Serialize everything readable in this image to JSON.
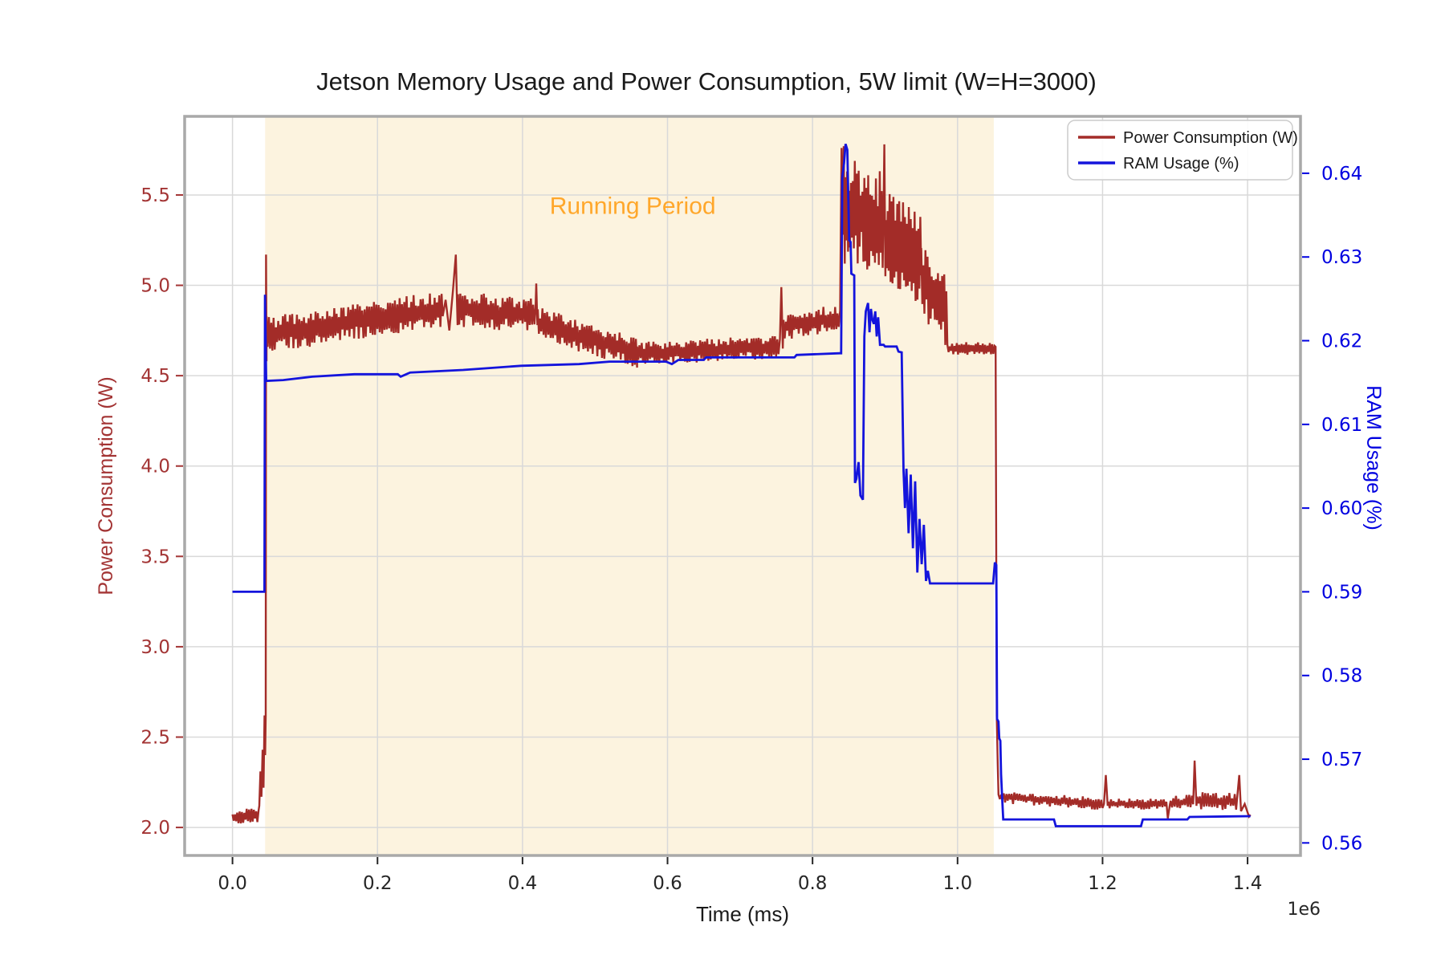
{
  "chart_data": {
    "type": "line",
    "title": "Jetson Memory Usage and Power Consumption, 5W limit (W=H=3000)",
    "xlabel": "Time (ms)",
    "x_offset_label": "1e6",
    "ylabel_left": "Power Consumption (W)",
    "ylabel_right": "RAM Usage (%)",
    "grid": true,
    "legend_position": "upper right",
    "xlim": [
      -66000,
      1473000
    ],
    "ylim_left": [
      1.845,
      5.935
    ],
    "ylim_right": [
      0.5585,
      0.6468
    ],
    "x_ticks": {
      "values": [
        0,
        200000,
        400000,
        600000,
        800000,
        1000000,
        1200000,
        1400000
      ],
      "labels": [
        "0.0",
        "0.2",
        "0.4",
        "0.6",
        "0.8",
        "1.0",
        "1.2",
        "1.4"
      ]
    },
    "y_ticks_left": {
      "values": [
        2.0,
        2.5,
        3.0,
        3.5,
        4.0,
        4.5,
        5.0,
        5.5
      ],
      "labels": [
        "2.0",
        "2.5",
        "3.0",
        "3.5",
        "4.0",
        "4.5",
        "5.0",
        "5.5"
      ]
    },
    "y_ticks_right": {
      "values": [
        0.56,
        0.57,
        0.58,
        0.59,
        0.6,
        0.61,
        0.62,
        0.63,
        0.64
      ],
      "labels": [
        "0.56",
        "0.57",
        "0.58",
        "0.59",
        "0.60",
        "0.61",
        "0.62",
        "0.63",
        "0.64"
      ]
    },
    "colors": {
      "power": "#A32C28",
      "ram": "#1414DC",
      "grid": "#d9d9d9",
      "spine": "#a9a9a9",
      "tick_left": "#A33434",
      "tick_right": "#0000E0",
      "tick_bottom": "#262626",
      "title": "#1a1a1a",
      "annotation": "#FFA72B",
      "shade": "#FCF3DF",
      "legend_border": "#cccccc",
      "legend_bg": "#ffffff"
    },
    "shaded_region": {
      "x0": 45000,
      "x1": 1050000,
      "label": "Running Period",
      "label_x": 552000,
      "label_y": 5.44
    },
    "legend": {
      "entries": [
        {
          "label": "Power Consumption (W)",
          "color": "#A32C28"
        },
        {
          "label": "RAM Usage (%)",
          "color": "#1414DC"
        }
      ]
    },
    "series": [
      {
        "name": "Power Consumption (W)",
        "axis": "left",
        "color": "#A32C28",
        "width": 2.4,
        "segments": [
          {
            "type": "noise",
            "x0": 0,
            "x1": 36000,
            "y0": 2.05,
            "y1": 2.07,
            "amp": 0.045,
            "step": 1600
          },
          {
            "type": "pts",
            "p": [
              [
                37000,
                2.12
              ],
              [
                38500,
                2.31
              ],
              [
                40000,
                2.17
              ],
              [
                41500,
                2.43
              ],
              [
                42800,
                2.22
              ],
              [
                44200,
                2.62
              ],
              [
                45000,
                2.4
              ],
              [
                45800,
                2.62
              ]
            ]
          },
          {
            "type": "pts",
            "p": [
              [
                46300,
                5.17
              ],
              [
                46900,
                4.58
              ]
            ]
          },
          {
            "type": "noise",
            "x0": 47000,
            "x1": 150000,
            "y0": 4.73,
            "y1": 4.78,
            "amp": 0.1,
            "step": 1600
          },
          {
            "type": "noise",
            "x0": 150000,
            "x1": 290000,
            "y0": 4.79,
            "y1": 4.87,
            "amp": 0.1,
            "step": 1600
          },
          {
            "type": "pts",
            "p": [
              [
                294000,
                4.92
              ],
              [
                299000,
                4.75
              ],
              [
                304000,
                4.97
              ],
              [
                308000,
                5.17
              ],
              [
                310500,
                4.78
              ]
            ]
          },
          {
            "type": "noise",
            "x0": 311000,
            "x1": 418000,
            "y0": 4.87,
            "y1": 4.83,
            "amp": 0.1,
            "step": 1600
          },
          {
            "type": "pts",
            "p": [
              [
                419000,
                5.01
              ],
              [
                420500,
                4.78
              ]
            ]
          },
          {
            "type": "noise",
            "x0": 421000,
            "x1": 558000,
            "y0": 4.79,
            "y1": 4.63,
            "amp": 0.09,
            "step": 1600
          },
          {
            "type": "noise",
            "x0": 558000,
            "x1": 753000,
            "y0": 4.62,
            "y1": 4.66,
            "amp": 0.065,
            "step": 1600
          },
          {
            "type": "pts",
            "p": [
              [
                755000,
                4.7
              ],
              [
                757000,
                4.99
              ],
              [
                759000,
                4.65
              ]
            ]
          },
          {
            "type": "noise",
            "x0": 760000,
            "x1": 836000,
            "y0": 4.77,
            "y1": 4.82,
            "amp": 0.075,
            "step": 1600
          },
          {
            "type": "pts",
            "p": [
              [
                838000,
                4.86
              ],
              [
                840000,
                5.76
              ],
              [
                841500,
                5.28
              ],
              [
                843000,
                5.77
              ],
              [
                844500,
                5.12
              ]
            ]
          },
          {
            "type": "noise",
            "x0": 845000,
            "x1": 898000,
            "y0": 5.44,
            "y1": 5.32,
            "amp": 0.3,
            "step": 1300
          },
          {
            "type": "pts",
            "p": [
              [
                899000,
                5.78
              ],
              [
                900500,
                5.05
              ]
            ]
          },
          {
            "type": "noise",
            "x0": 901000,
            "x1": 950000,
            "y0": 5.28,
            "y1": 5.14,
            "amp": 0.27,
            "step": 1300
          },
          {
            "type": "noise",
            "x0": 950000,
            "x1": 986000,
            "y0": 5.05,
            "y1": 4.84,
            "amp": 0.21,
            "step": 1400
          },
          {
            "type": "noise",
            "x0": 986000,
            "x1": 1051000,
            "y0": 4.65,
            "y1": 4.65,
            "amp": 0.035,
            "step": 1600
          },
          {
            "type": "pts",
            "p": [
              [
                1052500,
                4.66
              ],
              [
                1054000,
                2.62
              ],
              [
                1055500,
                2.34
              ]
            ]
          },
          {
            "type": "noise",
            "x0": 1056500,
            "x1": 1200000,
            "y0": 2.17,
            "y1": 2.13,
            "amp": 0.035,
            "step": 1800
          },
          {
            "type": "pts",
            "p": [
              [
                1202000,
                2.13
              ],
              [
                1204500,
                2.29
              ],
              [
                1207000,
                2.12
              ]
            ]
          },
          {
            "type": "noise",
            "x0": 1208000,
            "x1": 1288000,
            "y0": 2.13,
            "y1": 2.13,
            "amp": 0.03,
            "step": 1800
          },
          {
            "type": "pts",
            "p": [
              [
                1290000,
                2.05
              ],
              [
                1293000,
                2.13
              ]
            ]
          },
          {
            "type": "noise",
            "x0": 1294000,
            "x1": 1325000,
            "y0": 2.13,
            "y1": 2.15,
            "amp": 0.04,
            "step": 1800
          },
          {
            "type": "pts",
            "p": [
              [
                1327000,
                2.37
              ],
              [
                1329500,
                2.12
              ]
            ]
          },
          {
            "type": "noise",
            "x0": 1330500,
            "x1": 1386000,
            "y0": 2.15,
            "y1": 2.14,
            "amp": 0.05,
            "step": 1800
          },
          {
            "type": "pts",
            "p": [
              [
                1388500,
                2.29
              ],
              [
                1391000,
                2.09
              ],
              [
                1396000,
                2.13
              ],
              [
                1402000,
                2.06
              ],
              [
                1404000,
                2.07
              ]
            ]
          }
        ]
      },
      {
        "name": "RAM Usage (%)",
        "axis": "right",
        "color": "#1414DC",
        "width": 2.8,
        "points": [
          [
            0,
            0.59
          ],
          [
            44000,
            0.59
          ],
          [
            44800,
            0.6255
          ],
          [
            45600,
            0.6205
          ],
          [
            46500,
            0.6152
          ],
          [
            70000,
            0.6153
          ],
          [
            110000,
            0.6157
          ],
          [
            168000,
            0.616
          ],
          [
            228000,
            0.616
          ],
          [
            232000,
            0.6157
          ],
          [
            245000,
            0.6162
          ],
          [
            318000,
            0.6165
          ],
          [
            398000,
            0.617
          ],
          [
            478000,
            0.6172
          ],
          [
            520000,
            0.6175
          ],
          [
            598000,
            0.6175
          ],
          [
            606000,
            0.6172
          ],
          [
            615000,
            0.6177
          ],
          [
            650000,
            0.6177
          ],
          [
            653000,
            0.618
          ],
          [
            775000,
            0.618
          ],
          [
            778000,
            0.6183
          ],
          [
            837000,
            0.6185
          ],
          [
            839500,
            0.6185
          ],
          [
            841000,
            0.6395
          ],
          [
            843500,
            0.6412
          ],
          [
            845500,
            0.6435
          ],
          [
            848000,
            0.6428
          ],
          [
            850500,
            0.632
          ],
          [
            852500,
            0.6318
          ],
          [
            853500,
            0.628
          ],
          [
            857500,
            0.6278
          ],
          [
            858500,
            0.603
          ],
          [
            860500,
            0.6035
          ],
          [
            863500,
            0.6055
          ],
          [
            866000,
            0.6015
          ],
          [
            869500,
            0.601
          ],
          [
            871500,
            0.6205
          ],
          [
            873500,
            0.6235
          ],
          [
            876500,
            0.6245
          ],
          [
            878500,
            0.621
          ],
          [
            880500,
            0.6238
          ],
          [
            882500,
            0.6225
          ],
          [
            884500,
            0.622
          ],
          [
            886500,
            0.6235
          ],
          [
            888500,
            0.6205
          ],
          [
            890500,
            0.6228
          ],
          [
            893000,
            0.6195
          ],
          [
            898000,
            0.6195
          ],
          [
            900000,
            0.6193
          ],
          [
            916000,
            0.6193
          ],
          [
            918500,
            0.6187
          ],
          [
            923000,
            0.6186
          ],
          [
            925500,
            0.6045
          ],
          [
            927500,
            0.6
          ],
          [
            929500,
            0.6047
          ],
          [
            932500,
            0.597
          ],
          [
            935500,
            0.604
          ],
          [
            938500,
            0.5952
          ],
          [
            941500,
            0.6032
          ],
          [
            944500,
            0.5923
          ],
          [
            947500,
            0.5987
          ],
          [
            950500,
            0.5933
          ],
          [
            953500,
            0.598
          ],
          [
            956500,
            0.5913
          ],
          [
            959000,
            0.5925
          ],
          [
            962000,
            0.591
          ],
          [
            1049000,
            0.591
          ],
          [
            1051500,
            0.5935
          ],
          [
            1053500,
            0.5932
          ],
          [
            1054500,
            0.5748
          ],
          [
            1056500,
            0.5745
          ],
          [
            1057500,
            0.5725
          ],
          [
            1059000,
            0.5722
          ],
          [
            1060000,
            0.5682
          ],
          [
            1061500,
            0.5655
          ],
          [
            1063000,
            0.5628
          ],
          [
            1133000,
            0.5628
          ],
          [
            1135500,
            0.562
          ],
          [
            1253000,
            0.562
          ],
          [
            1255500,
            0.5628
          ],
          [
            1317000,
            0.5628
          ],
          [
            1320000,
            0.5631
          ],
          [
            1404000,
            0.5632
          ]
        ]
      }
    ]
  }
}
